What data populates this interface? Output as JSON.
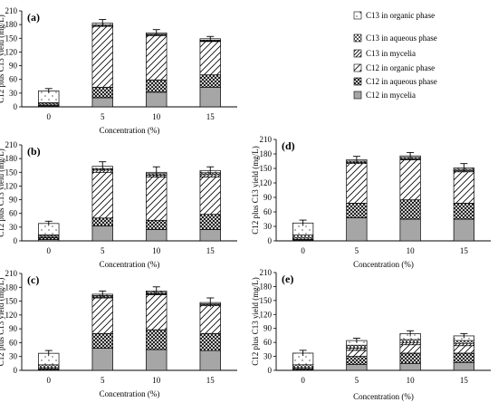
{
  "legend": [
    {
      "label": "C13 in organic phase",
      "pattern": "blank"
    },
    {
      "label": "C13 in aqueous phase",
      "pattern": "checker"
    },
    {
      "label": "C13 in mycelia",
      "pattern": "hatch-dense"
    },
    {
      "label": "C12 in organic phase",
      "pattern": "hatch"
    },
    {
      "label": "C12 in aqueous phase",
      "pattern": "cross"
    },
    {
      "label": "C12 in mycelia",
      "pattern": "solid"
    }
  ],
  "colors": {
    "solid": "#a6a6a6",
    "line": "#000000"
  },
  "chart_data": [
    {
      "type": "bar",
      "stacked": true,
      "panel_label": "(a)",
      "categories": [
        "0",
        "5",
        "10",
        "15"
      ],
      "ylabel": "C12 plus C13 yield (mg/L)",
      "xlabel": "Concentration (%)",
      "ylim": [
        0,
        210
      ],
      "yticks": [
        "0",
        "30",
        "60",
        "90",
        "120",
        "150",
        "180",
        "210"
      ],
      "series": [
        {
          "name": "C12 in mycelia",
          "values": [
            1,
            20,
            32,
            43
          ]
        },
        {
          "name": "C12 in aqueous phase",
          "values": [
            2,
            23,
            27,
            27
          ]
        },
        {
          "name": "C12 in organic phase",
          "values": [
            0,
            133,
            97,
            73
          ]
        },
        {
          "name": "C13 in mycelia",
          "values": [
            3,
            1,
            1,
            1
          ]
        },
        {
          "name": "C13 in aqueous phase",
          "values": [
            3,
            2,
            2,
            2
          ]
        },
        {
          "name": "C13 in organic phase",
          "values": [
            26,
            4,
            3,
            3
          ]
        }
      ],
      "errors": [
        5,
        8,
        7,
        5
      ]
    },
    {
      "type": "bar",
      "stacked": true,
      "panel_label": "(b)",
      "categories": [
        "0",
        "5",
        "10",
        "15"
      ],
      "ylabel": "C12 plus C13 yield (mg/L)",
      "xlabel": "Concentration (%)",
      "ylim": [
        0,
        210
      ],
      "yticks": [
        "0",
        "30",
        "60",
        "90",
        "120",
        "150",
        "180",
        "210"
      ],
      "series": [
        {
          "name": "C12 in mycelia",
          "values": [
            3,
            33,
            25,
            25
          ]
        },
        {
          "name": "C12 in aqueous phase",
          "values": [
            4,
            17,
            20,
            33
          ]
        },
        {
          "name": "C12 in organic phase",
          "values": [
            0,
            100,
            95,
            82
          ]
        },
        {
          "name": "C13 in mycelia",
          "values": [
            3,
            5,
            4,
            5
          ]
        },
        {
          "name": "C13 in aqueous phase",
          "values": [
            3,
            3,
            3,
            4
          ]
        },
        {
          "name": "C13 in organic phase",
          "values": [
            25,
            5,
            3,
            5
          ]
        }
      ],
      "errors": [
        5,
        10,
        12,
        8
      ]
    },
    {
      "type": "bar",
      "stacked": true,
      "panel_label": "(c)",
      "categories": [
        "0",
        "5",
        "10",
        "15"
      ],
      "ylabel": "C12 plus C13 yield (mg/L)",
      "xlabel": "Concentration (%)",
      "ylim": [
        0,
        210
      ],
      "yticks": [
        "0",
        "30",
        "60",
        "90",
        "120",
        "150",
        "180",
        "210"
      ],
      "series": [
        {
          "name": "C12 in mycelia",
          "values": [
            1,
            48,
            45,
            43
          ]
        },
        {
          "name": "C12 in aqueous phase",
          "values": [
            2,
            32,
            43,
            37
          ]
        },
        {
          "name": "C12 in organic phase",
          "values": [
            0,
            77,
            76,
            60
          ]
        },
        {
          "name": "C13 in mycelia",
          "values": [
            3,
            2,
            2,
            2
          ]
        },
        {
          "name": "C13 in aqueous phase",
          "values": [
            6,
            3,
            3,
            2
          ]
        },
        {
          "name": "C13 in organic phase",
          "values": [
            25,
            3,
            3,
            3
          ]
        }
      ],
      "errors": [
        6,
        7,
        9,
        10
      ]
    },
    {
      "type": "bar",
      "stacked": true,
      "panel_label": "(d)",
      "categories": [
        "0",
        "5",
        "10",
        "15"
      ],
      "ylabel": "C12 plus C13 yield (mg/L)",
      "xlabel": "Concentration (%)",
      "ylim": [
        0,
        210
      ],
      "yticks": [
        "0",
        "30",
        "60",
        "90",
        "120",
        "150",
        "180",
        "210"
      ],
      "series": [
        {
          "name": "C12 in mycelia",
          "values": [
            1,
            48,
            45,
            45
          ]
        },
        {
          "name": "C12 in aqueous phase",
          "values": [
            2,
            30,
            40,
            33
          ]
        },
        {
          "name": "C12 in organic phase",
          "values": [
            0,
            82,
            83,
            65
          ]
        },
        {
          "name": "C13 in mycelia",
          "values": [
            3,
            2,
            2,
            2
          ]
        },
        {
          "name": "C13 in aqueous phase",
          "values": [
            6,
            3,
            3,
            3
          ]
        },
        {
          "name": "C13 in organic phase",
          "values": [
            25,
            3,
            3,
            3
          ]
        }
      ],
      "errors": [
        6,
        7,
        7,
        9
      ]
    },
    {
      "type": "bar",
      "stacked": true,
      "panel_label": "(e)",
      "categories": [
        "0",
        "5",
        "10",
        "15"
      ],
      "ylabel": "C12 plus C13 yield (mg/L)",
      "xlabel": "Concentration (%)",
      "ylim": [
        0,
        210
      ],
      "yticks": [
        "0",
        "30",
        "60",
        "90",
        "120",
        "150",
        "180",
        "210"
      ],
      "series": [
        {
          "name": "C12 in mycelia",
          "values": [
            1,
            13,
            15,
            17
          ]
        },
        {
          "name": "C12 in aqueous phase",
          "values": [
            2,
            17,
            22,
            20
          ]
        },
        {
          "name": "C12 in organic phase",
          "values": [
            0,
            13,
            18,
            16
          ]
        },
        {
          "name": "C13 in mycelia",
          "values": [
            3,
            5,
            5,
            5
          ]
        },
        {
          "name": "C13 in aqueous phase",
          "values": [
            6,
            6,
            6,
            6
          ]
        },
        {
          "name": "C13 in organic phase",
          "values": [
            25,
            10,
            13,
            10
          ]
        }
      ],
      "errors": [
        6,
        5,
        6,
        5
      ]
    }
  ]
}
